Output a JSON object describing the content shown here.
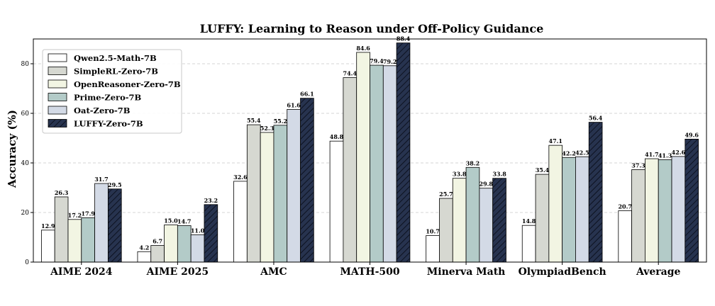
{
  "chart_data": {
    "type": "bar",
    "title": "LUFFY: Learning to Reason under Off-Policy Guidance",
    "xlabel": "",
    "ylabel": "Accuracy (%)",
    "ylim": [
      0,
      90
    ],
    "yticks": [
      0,
      20,
      40,
      60,
      80
    ],
    "grid": "y-dashed",
    "legend_position": "top-left",
    "categories": [
      "AIME 2024",
      "AIME 2025",
      "AMC",
      "MATH-500",
      "Minerva Math",
      "OlympiadBench",
      "Average"
    ],
    "series": [
      {
        "name": "Qwen2.5-Math-7B",
        "color": "#ffffff",
        "hatch": false,
        "values": [
          12.9,
          4.2,
          32.6,
          48.8,
          10.7,
          14.8,
          20.7
        ]
      },
      {
        "name": "SimpleRL-Zero-7B",
        "color": "#d6d8d1",
        "hatch": false,
        "values": [
          26.3,
          6.7,
          55.4,
          74.4,
          25.7,
          35.4,
          37.3
        ]
      },
      {
        "name": "OpenReasoner-Zero-7B",
        "color": "#f2f5e3",
        "hatch": false,
        "values": [
          17.2,
          15.0,
          52.3,
          84.6,
          33.8,
          47.1,
          41.7
        ]
      },
      {
        "name": "Prime-Zero-7B",
        "color": "#b3cbc8",
        "hatch": false,
        "values": [
          17.9,
          14.7,
          55.2,
          79.4,
          38.2,
          42.2,
          41.3
        ]
      },
      {
        "name": "Oat-Zero-7B",
        "color": "#d3dae6",
        "hatch": false,
        "values": [
          31.7,
          11.0,
          61.6,
          79.2,
          29.8,
          42.5,
          42.6
        ]
      },
      {
        "name": "LUFFY-Zero-7B",
        "color": "#27334f",
        "hatch": true,
        "values": [
          29.5,
          23.2,
          66.1,
          88.4,
          33.8,
          56.4,
          49.6
        ]
      }
    ]
  }
}
